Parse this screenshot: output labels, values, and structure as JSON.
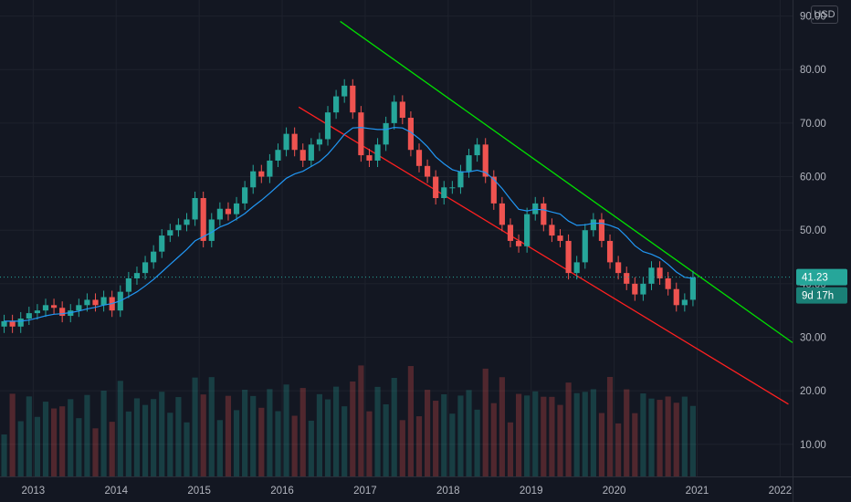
{
  "currency": "USD",
  "chart_data": {
    "type": "candlestick",
    "title": "",
    "y_axis": {
      "ticks": [
        10,
        20,
        30,
        40,
        50,
        60,
        70,
        80,
        90
      ],
      "tick_labels": [
        "10.00",
        "20.00",
        "30.00",
        "40.00",
        "50.00",
        "60.00",
        "70.00",
        "80.00",
        "90.00"
      ],
      "range": [
        4,
        93
      ]
    },
    "x_axis": {
      "ticks": [
        2013,
        2014,
        2015,
        2016,
        2017,
        2018,
        2019,
        2020,
        2021,
        2022
      ],
      "tick_labels": [
        "2013",
        "2014",
        "2015",
        "2016",
        "2017",
        "2018",
        "2019",
        "2020",
        "2021",
        "2022"
      ],
      "range": [
        2012.6,
        2022.15
      ]
    },
    "price_series": {
      "time": [
        2012.65,
        2012.75,
        2012.85,
        2012.95,
        2013.05,
        2013.15,
        2013.25,
        2013.35,
        2013.45,
        2013.55,
        2013.65,
        2013.75,
        2013.85,
        2013.95,
        2014.05,
        2014.15,
        2014.25,
        2014.35,
        2014.45,
        2014.55,
        2014.65,
        2014.75,
        2014.85,
        2014.95,
        2015.05,
        2015.15,
        2015.25,
        2015.35,
        2015.45,
        2015.55,
        2015.65,
        2015.75,
        2015.85,
        2015.95,
        2016.05,
        2016.15,
        2016.25,
        2016.35,
        2016.45,
        2016.55,
        2016.65,
        2016.75,
        2016.85,
        2016.95,
        2017.05,
        2017.15,
        2017.25,
        2017.35,
        2017.45,
        2017.55,
        2017.65,
        2017.75,
        2017.85,
        2017.95,
        2018.05,
        2018.15,
        2018.25,
        2018.35,
        2018.45,
        2018.55,
        2018.65,
        2018.75,
        2018.85,
        2018.95,
        2019.05,
        2019.15,
        2019.25,
        2019.35,
        2019.45,
        2019.55,
        2019.65,
        2019.75,
        2019.85,
        2019.95,
        2020.05,
        2020.15,
        2020.25,
        2020.35,
        2020.45,
        2020.55,
        2020.65,
        2020.75,
        2020.85,
        2020.95
      ],
      "close": [
        33,
        32,
        33.5,
        34.5,
        35,
        36,
        35.5,
        34,
        35,
        36,
        37,
        36,
        37.5,
        35,
        38.5,
        41,
        42,
        44,
        46,
        49,
        50,
        51,
        52,
        56,
        48,
        52,
        54,
        53,
        55,
        58,
        61,
        60,
        63,
        65,
        68,
        65,
        63,
        66,
        67,
        72,
        75,
        77,
        72,
        64,
        63,
        66,
        70,
        74,
        71,
        65,
        62,
        60,
        56,
        58,
        58,
        61,
        64,
        66,
        60,
        55,
        51,
        48,
        47,
        53,
        55,
        51,
        49,
        48,
        42,
        44,
        50,
        52,
        48,
        44,
        42,
        40,
        38,
        40,
        43,
        41,
        39,
        36,
        37,
        41.2
      ],
      "moving_average": [
        33,
        33,
        33,
        33.2,
        33.6,
        34,
        34.3,
        34.4,
        34.6,
        34.9,
        35.3,
        35.6,
        36,
        36.3,
        36.8,
        37.6,
        38.5,
        39.6,
        40.8,
        42.2,
        43.6,
        45,
        46.4,
        48,
        48.8,
        49.6,
        50.6,
        51.2,
        52.1,
        53.1,
        54.4,
        55.6,
        56.9,
        58.3,
        59.7,
        60.5,
        61,
        61.9,
        62.8,
        64.2,
        66,
        67.9,
        69.1,
        69.2,
        69,
        68.8,
        68.8,
        69.2,
        69.1,
        68.3,
        67.1,
        65.6,
        63.7,
        62.4,
        61.3,
        60.9,
        60.9,
        61.2,
        60.8,
        59.5,
        57.8,
        55.8,
        53.9,
        53.6,
        53.9,
        53.8,
        53.4,
        53,
        51.7,
        50.9,
        51,
        51.3,
        51.3,
        50.9,
        50.3,
        48.8,
        47.1,
        46,
        45.5,
        44.8,
        43.6,
        42.2,
        41.2,
        41
      ]
    },
    "channel_lines": [
      {
        "color": "#00e000",
        "from": [
          2016.7,
          89
        ],
        "to": [
          2022.15,
          29
        ]
      },
      {
        "color": "#ff2020",
        "from": [
          2016.2,
          73
        ],
        "to": [
          2022.1,
          17.5
        ]
      }
    ],
    "last_price": "41.23",
    "countdown": "9d 17h",
    "colors": {
      "up": "#26a69a",
      "down": "#ef5350",
      "ma": "#2196f3",
      "background": "#131722"
    }
  }
}
